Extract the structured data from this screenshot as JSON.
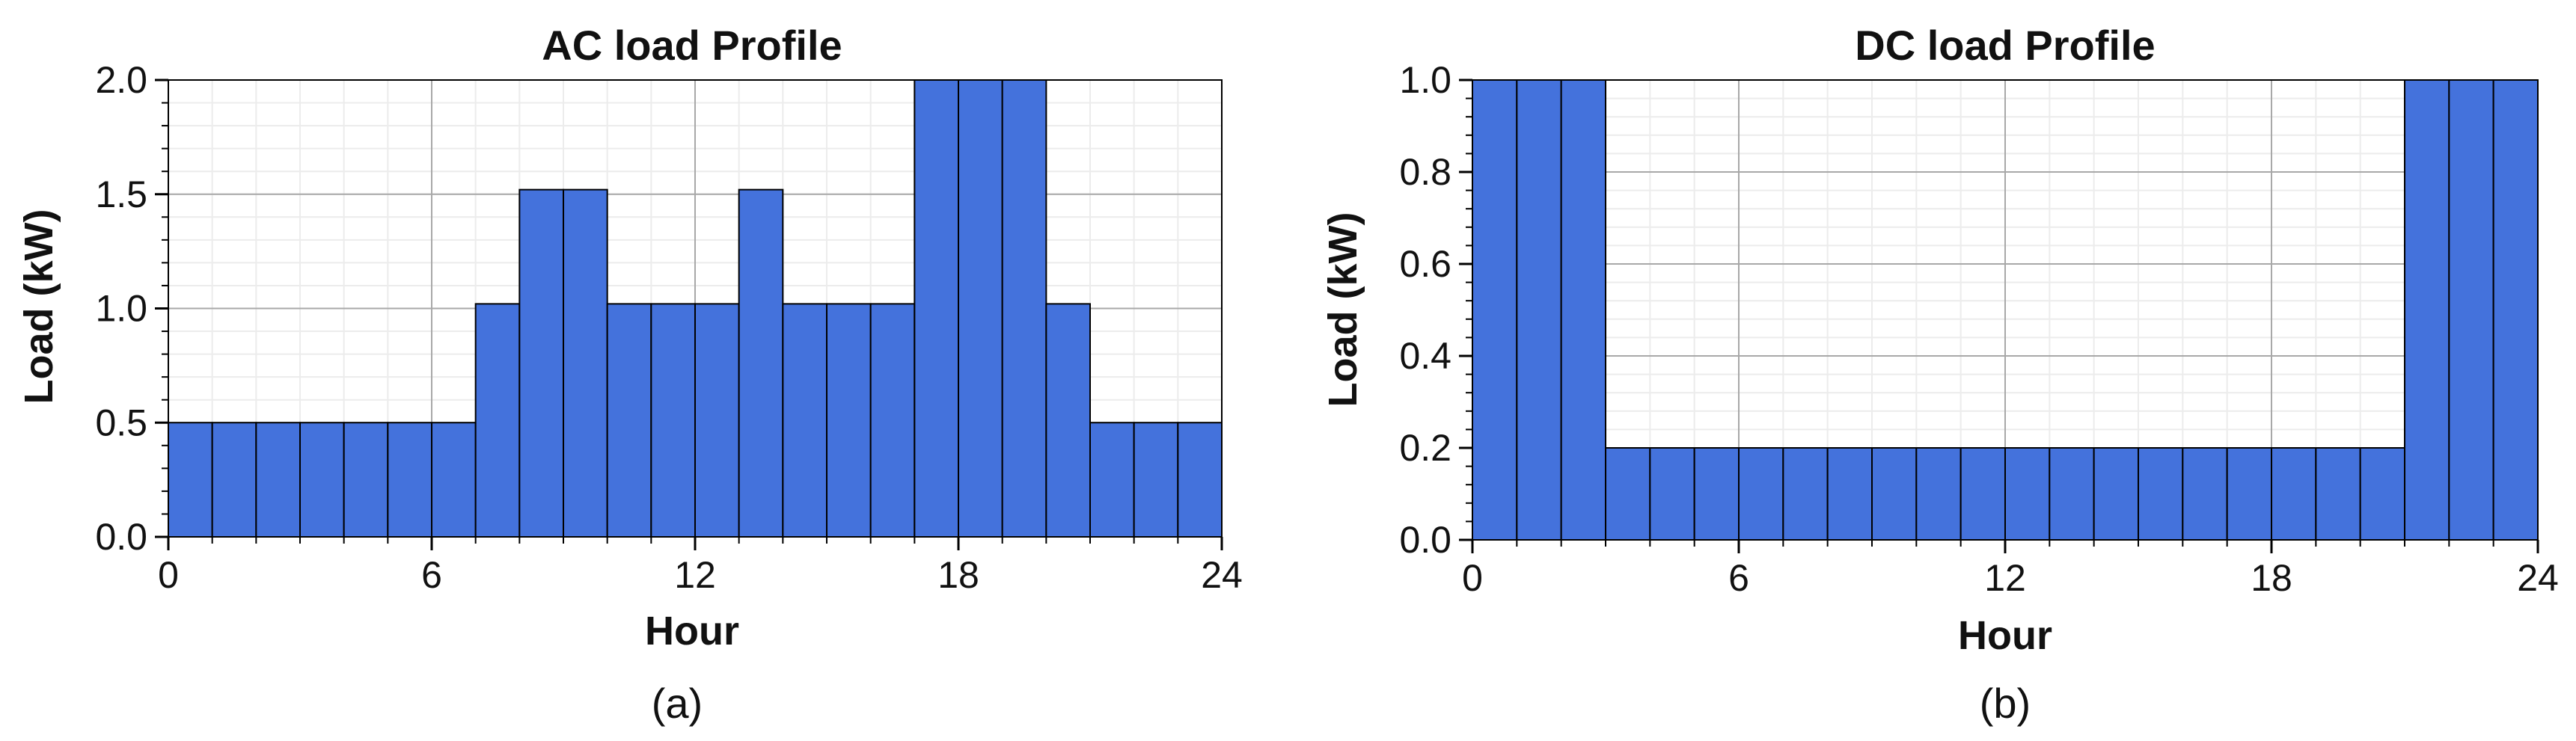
{
  "chart_data": [
    {
      "type": "bar",
      "panel_label": "(a)",
      "title": "AC load Profile",
      "xlabel": "Hour",
      "ylabel": "Load (kW)",
      "xlim": [
        0,
        24
      ],
      "ylim": [
        0,
        2.0
      ],
      "xticks": [
        "0",
        "6",
        "12",
        "18",
        "24"
      ],
      "yticks": [
        "0.0",
        "0.5",
        "1.0",
        "1.5",
        "2.0"
      ],
      "grid": true,
      "bar_color": "#4472dc",
      "x": [
        0,
        1,
        2,
        3,
        4,
        5,
        6,
        7,
        8,
        9,
        10,
        11,
        12,
        13,
        14,
        15,
        16,
        17,
        18,
        19,
        20,
        21,
        22,
        23
      ],
      "values": [
        0.5,
        0.5,
        0.5,
        0.5,
        0.5,
        0.5,
        0.5,
        1.02,
        1.52,
        1.52,
        1.02,
        1.02,
        1.02,
        1.52,
        1.02,
        1.02,
        1.02,
        2.0,
        2.0,
        2.0,
        1.02,
        0.5,
        0.5,
        0.5
      ]
    },
    {
      "type": "bar",
      "panel_label": "(b)",
      "title": "DC load Profile",
      "xlabel": "Hour",
      "ylabel": "Load (kW)",
      "xlim": [
        0,
        24
      ],
      "ylim": [
        0,
        1.0
      ],
      "xticks": [
        "0",
        "6",
        "12",
        "18",
        "24"
      ],
      "yticks": [
        "0.0",
        "0.2",
        "0.4",
        "0.6",
        "0.8",
        "1.0"
      ],
      "grid": true,
      "bar_color": "#4472dc",
      "x": [
        0,
        1,
        2,
        3,
        4,
        5,
        6,
        7,
        8,
        9,
        10,
        11,
        12,
        13,
        14,
        15,
        16,
        17,
        18,
        19,
        20,
        21,
        22,
        23
      ],
      "values": [
        1.0,
        1.0,
        1.0,
        0.2,
        0.2,
        0.2,
        0.2,
        0.2,
        0.2,
        0.2,
        0.2,
        0.2,
        0.2,
        0.2,
        0.2,
        0.2,
        0.2,
        0.2,
        0.2,
        0.2,
        0.2,
        1.0,
        1.0,
        1.0
      ]
    }
  ]
}
